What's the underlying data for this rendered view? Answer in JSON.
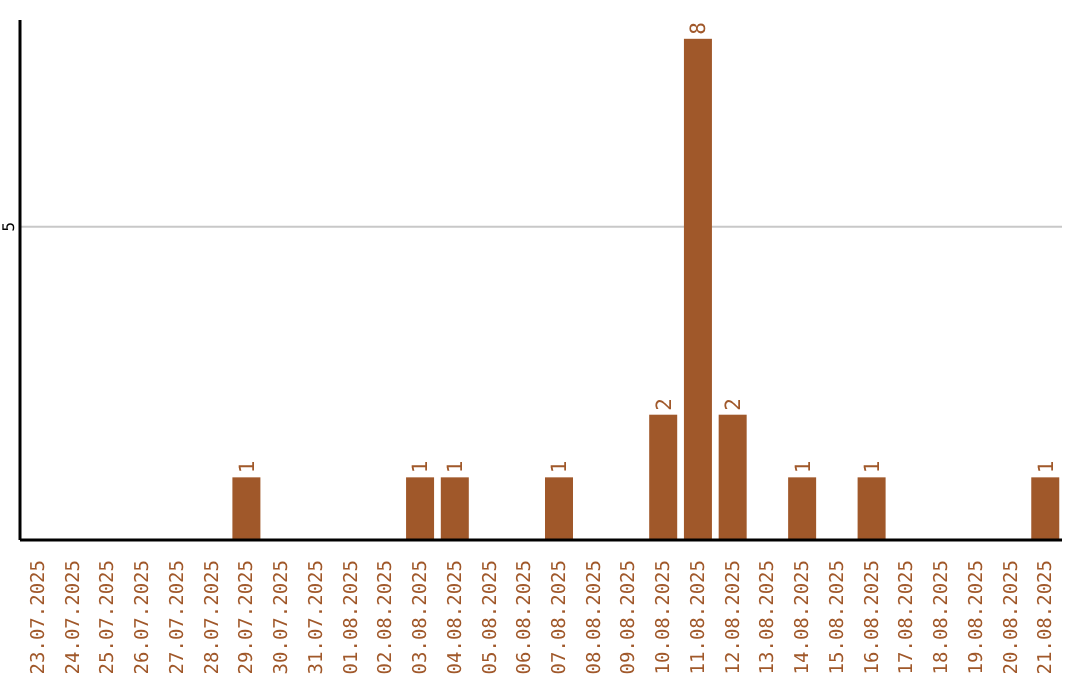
{
  "chart_data": {
    "type": "bar",
    "categories": [
      "23.07.2025",
      "24.07.2025",
      "25.07.2025",
      "26.07.2025",
      "27.07.2025",
      "28.07.2025",
      "29.07.2025",
      "30.07.2025",
      "31.07.2025",
      "01.08.2025",
      "02.08.2025",
      "03.08.2025",
      "04.08.2025",
      "05.08.2025",
      "06.08.2025",
      "07.08.2025",
      "08.08.2025",
      "09.08.2025",
      "10.08.2025",
      "11.08.2025",
      "12.08.2025",
      "13.08.2025",
      "14.08.2025",
      "15.08.2025",
      "16.08.2025",
      "17.08.2025",
      "18.08.2025",
      "19.08.2025",
      "20.08.2025",
      "21.08.2025"
    ],
    "values": [
      0,
      0,
      0,
      0,
      0,
      0,
      1,
      0,
      0,
      0,
      0,
      1,
      1,
      0,
      0,
      1,
      0,
      0,
      2,
      8,
      2,
      0,
      1,
      0,
      1,
      0,
      0,
      0,
      0,
      1
    ],
    "value_labels": [
      null,
      null,
      null,
      null,
      null,
      null,
      "1",
      null,
      null,
      null,
      null,
      "1",
      "1",
      null,
      null,
      "1",
      null,
      null,
      "2",
      "8",
      "2",
      null,
      "1",
      null,
      "1",
      null,
      null,
      null,
      null,
      "1"
    ],
    "color": "#a0582a",
    "ylim": [
      0,
      8.3
    ],
    "yticks": [
      5
    ],
    "grid": "y"
  }
}
